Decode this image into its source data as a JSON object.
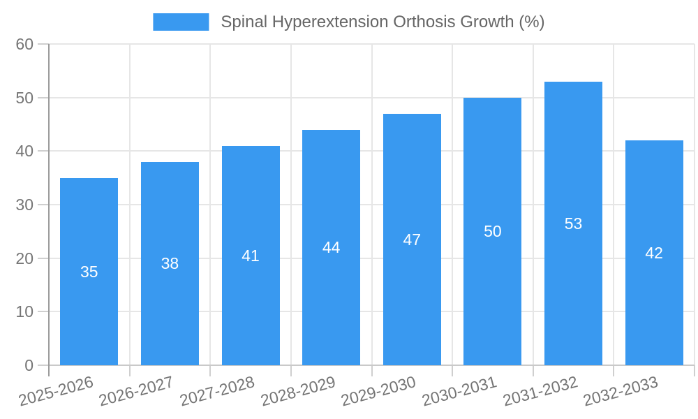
{
  "legend": {
    "label": "Spinal Hyperextension Orthosis Growth (%)"
  },
  "chart_data": {
    "type": "bar",
    "title": "Spinal Hyperextension Orthosis Growth (%)",
    "categories": [
      "2025-2026",
      "2026-2027",
      "2027-2028",
      "2028-2029",
      "2029-2030",
      "2030-2031",
      "2031-2032",
      "2032-2033"
    ],
    "values": [
      35,
      38,
      41,
      44,
      47,
      50,
      53,
      42
    ],
    "value_labels": [
      "35",
      "38",
      "41",
      "44",
      "47",
      "50",
      "53",
      "42"
    ],
    "ytick_labels": [
      "0",
      "10",
      "20",
      "30",
      "40",
      "50",
      "60"
    ],
    "yticks": [
      0,
      10,
      20,
      30,
      40,
      50,
      60
    ],
    "ylim": [
      0,
      60
    ],
    "grid": true,
    "legend_position": "top",
    "x_label_rotation_deg": -15,
    "colors": {
      "bar": "#3999F0",
      "value_label": "#ffffff",
      "axis_text": "#757575",
      "legend_text": "#666666",
      "gridline": "#e6e6e6",
      "y_axis_line": "#9b9b9b",
      "x_axis_line": "#c9c9c9",
      "tick": "#cfcfcf"
    }
  }
}
